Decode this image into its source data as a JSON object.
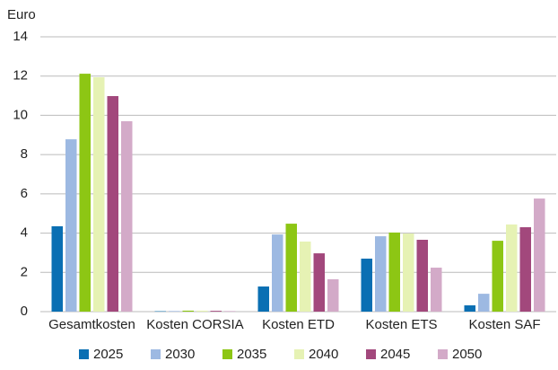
{
  "chart_data": {
    "type": "bar",
    "y_label": "Euro",
    "categories": [
      "Gesamtkosten",
      "Kosten CORSIA",
      "Kosten ETD",
      "Kosten ETS",
      "Kosten SAF"
    ],
    "series": [
      {
        "name": "2025",
        "color": "#0a6fb3",
        "values": [
          4.35,
          0.02,
          1.28,
          2.7,
          0.32
        ]
      },
      {
        "name": "2030",
        "color": "#9db9e2",
        "values": [
          8.78,
          0.03,
          3.93,
          3.84,
          0.91
        ]
      },
      {
        "name": "2035",
        "color": "#8dc614",
        "values": [
          12.12,
          0.05,
          4.48,
          4.03,
          3.61
        ]
      },
      {
        "name": "2040",
        "color": "#e6f2b4",
        "values": [
          11.94,
          0.05,
          3.57,
          3.98,
          4.44
        ]
      },
      {
        "name": "2045",
        "color": "#a2487c",
        "values": [
          10.98,
          0.04,
          2.97,
          3.66,
          4.3
        ]
      },
      {
        "name": "2050",
        "color": "#d3aac8",
        "values": [
          9.7,
          0.03,
          1.65,
          2.24,
          5.76
        ]
      }
    ],
    "ylim": [
      0,
      14
    ],
    "yticks": [
      0,
      2,
      4,
      6,
      8,
      10,
      12,
      14
    ],
    "grid": true,
    "legend": "bottom"
  }
}
